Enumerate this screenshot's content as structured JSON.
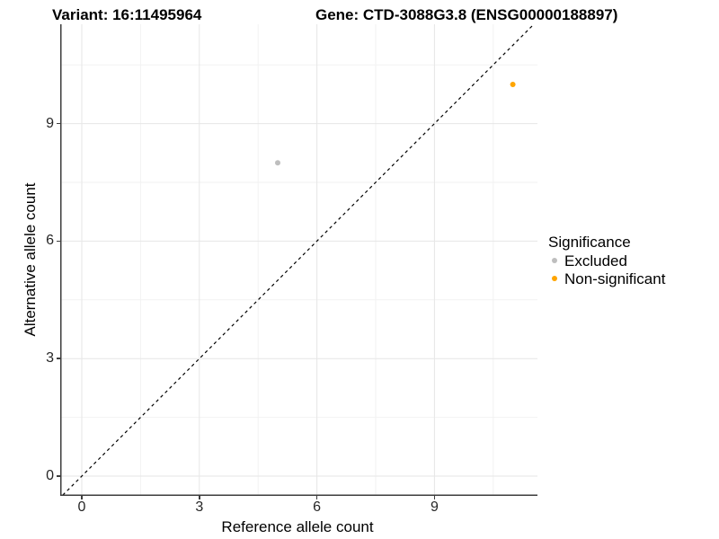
{
  "header": {
    "variant_title": "Variant: 16:11495964",
    "gene_title": "Gene: CTD-3088G3.8 (ENSG00000188897)"
  },
  "axes": {
    "x": {
      "label": "Reference allele count",
      "tick_labels": [
        "0",
        "3",
        "6",
        "9"
      ]
    },
    "y": {
      "label": "Alternative allele count",
      "tick_labels": [
        "0",
        "3",
        "6",
        "9"
      ]
    }
  },
  "legend": {
    "title": "Significance",
    "items": [
      {
        "label": "Excluded",
        "color": "#bebebe"
      },
      {
        "label": "Non-significant",
        "color": "#ffa500"
      }
    ]
  },
  "colors": {
    "background": "#ffffff",
    "grid_major": "#e6e6e6",
    "grid_minor": "#f2f2f2",
    "axis_line": "#3d3d3d",
    "tick_mark": "#3d3d3d",
    "reference_line": "#000000",
    "excluded_point": "#bebebe",
    "non_significant_point": "#ffa500"
  },
  "chart_data": {
    "type": "scatter",
    "title": "Variant: 16:11495964   Gene: CTD-3088G3.8 (ENSG00000188897)",
    "xlabel": "Reference allele count",
    "ylabel": "Alternative allele count",
    "xlim": [
      -0.6,
      11.7
    ],
    "ylim": [
      -0.6,
      11.7
    ],
    "x_ticks": [
      0,
      3,
      6,
      9
    ],
    "y_ticks": [
      0,
      3,
      6,
      9
    ],
    "minor_ticks": [
      1.5,
      4.5,
      7.5,
      10.5
    ],
    "grid": "major+minor on white panel",
    "legend_position": "right",
    "legend_title": "Significance",
    "reference_line": {
      "type": "identity y=x",
      "style": "dashed",
      "color": "#000000"
    },
    "series": [
      {
        "name": "Excluded",
        "color": "#bebebe",
        "points": [
          {
            "x": 5,
            "y": 8
          }
        ]
      },
      {
        "name": "Non-significant",
        "color": "#ffa500",
        "points": [
          {
            "x": 11,
            "y": 10
          }
        ]
      }
    ]
  }
}
